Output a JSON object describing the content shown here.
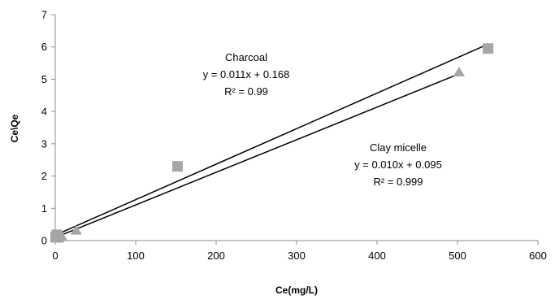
{
  "chart_data": {
    "type": "scatter",
    "title": "",
    "xlabel": "Ce(mg/L)",
    "ylabel": "Ce\\Qe",
    "xlim": [
      0,
      600
    ],
    "ylim": [
      0,
      7
    ],
    "xticks": [
      0,
      100,
      200,
      300,
      400,
      500,
      600
    ],
    "yticks": [
      0,
      1,
      2,
      3,
      4,
      5,
      6,
      7
    ],
    "grid": false,
    "legend": "none",
    "series": [
      {
        "marker": "square",
        "color": "#a6a6a6",
        "points": [
          [
            0.5,
            0.12
          ],
          [
            2,
            0.18
          ],
          [
            4,
            0.1
          ],
          [
            152,
            2.3
          ],
          [
            538,
            5.95
          ]
        ]
      },
      {
        "marker": "triangle",
        "color": "#a6a6a6",
        "points": [
          [
            0.5,
            0.05
          ],
          [
            3,
            0.08
          ],
          [
            8,
            0.12
          ],
          [
            26,
            0.3
          ],
          [
            502,
            5.2
          ]
        ]
      }
    ],
    "trendlines": [
      {
        "slope": 0.011,
        "intercept": 0.168,
        "x_range": [
          0,
          538
        ],
        "color": "#000000"
      },
      {
        "slope": 0.0101,
        "intercept": 0.095,
        "x_range": [
          0,
          506
        ],
        "color": "#000000"
      }
    ],
    "annotations": [
      {
        "lines": [
          "Charcoal",
          "y = 0.011x + 0.168",
          "R² = 0.99"
        ]
      },
      {
        "lines": [
          "Clay micelle",
          "y = 0.010x + 0.095",
          "R² = 0.999"
        ]
      }
    ]
  }
}
